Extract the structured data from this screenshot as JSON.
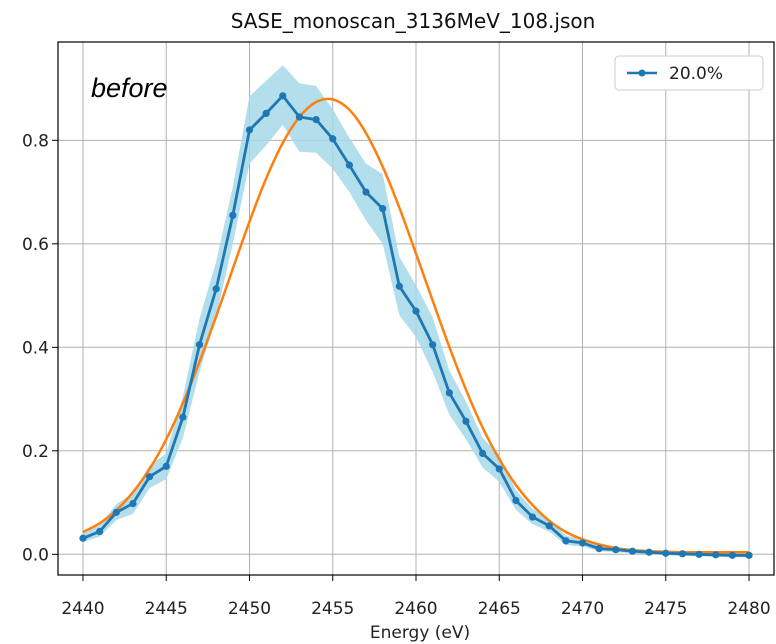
{
  "chart_data": {
    "type": "line",
    "title": "SASE_monoscan_3136MeV_108.json",
    "xlabel": "Energy (eV)",
    "ylabel": "",
    "annotation": "before",
    "xlim": [
      2438.5,
      2481.5
    ],
    "ylim": [
      -0.04,
      0.99
    ],
    "xticks": [
      2440,
      2445,
      2450,
      2455,
      2460,
      2465,
      2470,
      2475,
      2480
    ],
    "yticks": [
      0.0,
      0.2,
      0.4,
      0.6,
      0.8
    ],
    "ytick_labels": [
      "0.0",
      "0.2",
      "0.4",
      "0.6",
      "0.8"
    ],
    "grid": true,
    "legend_position": "top-right",
    "colors": {
      "measured": "#1f77b4",
      "band": "#a6d8e8",
      "fit": "#ff7f0e",
      "grid": "#b0b0b0"
    },
    "x": [
      2440,
      2441,
      2442,
      2443,
      2444,
      2445,
      2446,
      2447,
      2448,
      2449,
      2450,
      2451,
      2452,
      2453,
      2454,
      2455,
      2456,
      2457,
      2458,
      2459,
      2460,
      2461,
      2462,
      2463,
      2464,
      2465,
      2466,
      2467,
      2468,
      2469,
      2470,
      2471,
      2472,
      2473,
      2474,
      2475,
      2476,
      2477,
      2478,
      2479,
      2480
    ],
    "series": [
      {
        "name": "20.0%",
        "marker": "o",
        "values": [
          0.031,
          0.044,
          0.081,
          0.098,
          0.15,
          0.17,
          0.265,
          0.405,
          0.513,
          0.655,
          0.82,
          0.852,
          0.886,
          0.845,
          0.84,
          0.803,
          0.752,
          0.7,
          0.668,
          0.518,
          0.47,
          0.405,
          0.312,
          0.257,
          0.195,
          0.165,
          0.104,
          0.072,
          0.055,
          0.026,
          0.022,
          0.011,
          0.009,
          0.006,
          0.004,
          0.002,
          0.001,
          0.0,
          -0.001,
          -0.002,
          -0.002
        ],
        "band_lower": [
          0.024,
          0.034,
          0.066,
          0.078,
          0.128,
          0.145,
          0.225,
          0.352,
          0.46,
          0.6,
          0.755,
          0.79,
          0.83,
          0.778,
          0.776,
          0.745,
          0.7,
          0.645,
          0.6,
          0.462,
          0.42,
          0.352,
          0.27,
          0.222,
          0.168,
          0.14,
          0.086,
          0.058,
          0.044,
          0.018,
          0.015,
          0.006,
          0.004,
          0.002,
          0.0,
          -0.002,
          -0.003,
          -0.004,
          -0.005,
          -0.006,
          -0.006
        ],
        "band_upper": [
          0.04,
          0.056,
          0.097,
          0.118,
          0.172,
          0.195,
          0.305,
          0.455,
          0.566,
          0.71,
          0.885,
          0.915,
          0.945,
          0.91,
          0.905,
          0.86,
          0.805,
          0.755,
          0.735,
          0.575,
          0.52,
          0.458,
          0.355,
          0.295,
          0.225,
          0.192,
          0.124,
          0.088,
          0.068,
          0.036,
          0.03,
          0.017,
          0.014,
          0.01,
          0.008,
          0.006,
          0.005,
          0.004,
          0.003,
          0.002,
          0.002
        ]
      },
      {
        "values": [
          0.043,
          0.06,
          0.085,
          0.12,
          0.165,
          0.222,
          0.292,
          0.372,
          0.46,
          0.552,
          0.643,
          0.726,
          0.795,
          0.845,
          0.874,
          0.879,
          0.859,
          0.814,
          0.749,
          0.67,
          0.581,
          0.49,
          0.401,
          0.318,
          0.245,
          0.184,
          0.134,
          0.095,
          0.065,
          0.043,
          0.029,
          0.019,
          0.012,
          0.008,
          0.006,
          0.005,
          0.004,
          0.004,
          0.004,
          0.004,
          0.004
        ]
      }
    ]
  }
}
